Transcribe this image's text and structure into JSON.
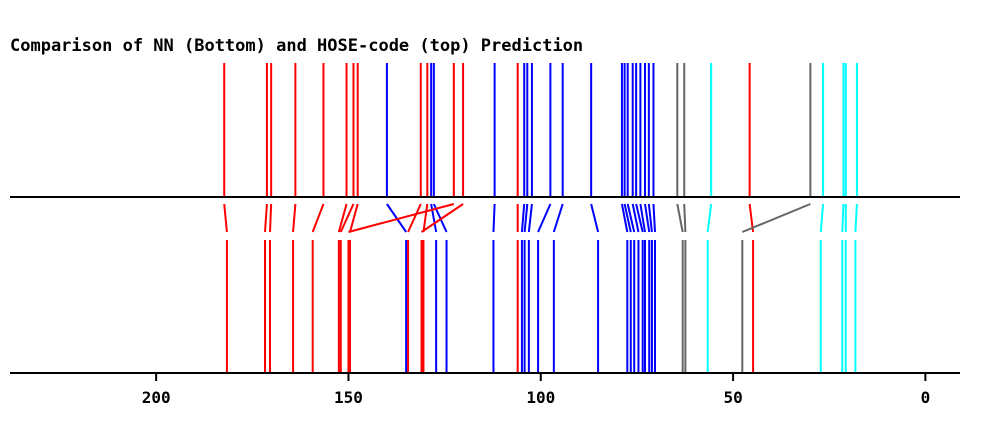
{
  "chart_data": {
    "type": "stick-comparison",
    "title": "Comparison of NN (Bottom) and HOSE-code (top) Prediction",
    "x_axis": {
      "reversed": true,
      "range": [
        -9,
        238
      ],
      "ticks": [
        200,
        150,
        100,
        50,
        0
      ],
      "tick_labels": [
        "200",
        "150",
        "100",
        "50",
        "0"
      ]
    },
    "colors": {
      "red": "#ff0000",
      "blue": "#0000ff",
      "gray": "#666666",
      "cyan": "#00ffff"
    },
    "pairs": [
      {
        "top": 182.3,
        "bottom": 181.6,
        "color": "red"
      },
      {
        "top": 171.2,
        "bottom": 171.7,
        "color": "red"
      },
      {
        "top": 170.1,
        "bottom": 170.4,
        "color": "red"
      },
      {
        "top": 163.8,
        "bottom": 164.4,
        "color": "red"
      },
      {
        "top": 156.5,
        "bottom": 159.3,
        "color": "red"
      },
      {
        "top": 150.5,
        "bottom": 152.5,
        "color": "red"
      },
      {
        "top": 148.7,
        "bottom": 152.0,
        "color": "red"
      },
      {
        "top": 147.6,
        "bottom": 149.6,
        "color": "red"
      },
      {
        "top": 140.0,
        "bottom": 135.0,
        "color": "blue"
      },
      {
        "top": 131.2,
        "bottom": 134.5,
        "color": "red"
      },
      {
        "top": 129.5,
        "bottom": 130.5,
        "color": "red"
      },
      {
        "top": 128.5,
        "bottom": 127.2,
        "color": "blue"
      },
      {
        "top": 127.8,
        "bottom": 124.5,
        "color": "blue"
      },
      {
        "top": 122.6,
        "bottom": 150.0,
        "color": "red"
      },
      {
        "top": 120.2,
        "bottom": 131.0,
        "color": "red"
      },
      {
        "top": 112.0,
        "bottom": 112.3,
        "color": "blue"
      },
      {
        "top": 106.0,
        "bottom": 106.0,
        "color": "red"
      },
      {
        "top": 104.3,
        "bottom": 104.9,
        "color": "blue"
      },
      {
        "top": 103.5,
        "bottom": 104.2,
        "color": "blue"
      },
      {
        "top": 102.3,
        "bottom": 103.1,
        "color": "blue"
      },
      {
        "top": 97.5,
        "bottom": 100.7,
        "color": "blue"
      },
      {
        "top": 94.3,
        "bottom": 96.6,
        "color": "blue"
      },
      {
        "top": 86.9,
        "bottom": 85.1,
        "color": "blue"
      },
      {
        "top": 78.9,
        "bottom": 77.5,
        "color": "blue"
      },
      {
        "top": 78.2,
        "bottom": 76.6,
        "color": "blue"
      },
      {
        "top": 77.4,
        "bottom": 75.7,
        "color": "blue"
      },
      {
        "top": 76.1,
        "bottom": 74.6,
        "color": "blue"
      },
      {
        "top": 75.2,
        "bottom": 73.5,
        "color": "blue"
      },
      {
        "top": 74.1,
        "bottom": 72.9,
        "color": "blue"
      },
      {
        "top": 72.9,
        "bottom": 71.8,
        "color": "blue"
      },
      {
        "top": 71.9,
        "bottom": 71.1,
        "color": "blue"
      },
      {
        "top": 70.7,
        "bottom": 70.3,
        "color": "blue"
      },
      {
        "top": 64.5,
        "bottom": 63.1,
        "color": "gray"
      },
      {
        "top": 62.7,
        "bottom": 62.4,
        "color": "gray"
      },
      {
        "top": 55.7,
        "bottom": 56.6,
        "color": "cyan"
      },
      {
        "top": 45.7,
        "bottom": 44.8,
        "color": "red"
      },
      {
        "top": 29.9,
        "bottom": 47.6,
        "color": "gray"
      },
      {
        "top": 26.6,
        "bottom": 27.2,
        "color": "cyan"
      },
      {
        "top": 21.3,
        "bottom": 21.6,
        "color": "cyan"
      },
      {
        "top": 20.7,
        "bottom": 20.7,
        "color": "cyan"
      },
      {
        "top": 17.8,
        "bottom": 18.2,
        "color": "cyan"
      }
    ]
  }
}
